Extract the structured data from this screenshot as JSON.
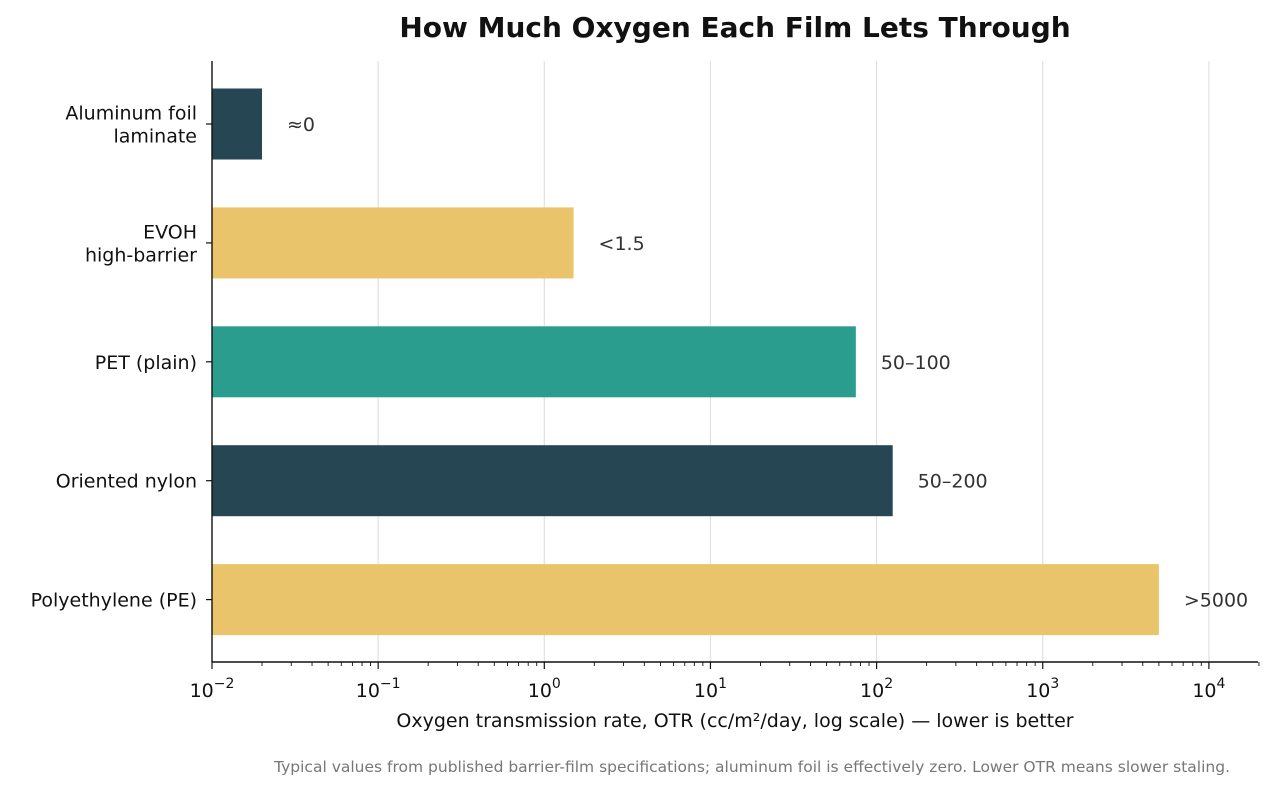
{
  "chart_data": {
    "type": "bar",
    "orientation": "horizontal",
    "title": "How Much Oxygen Each Film Lets Through",
    "xlabel": "Oxygen transmission rate, OTR (cc/m²/day, log scale) — lower is better",
    "ylabel": "",
    "x_scale": "log",
    "xlim": [
      0.01,
      20000
    ],
    "grid": "vertical",
    "footnote": "Typical values from published barrier-film specifications; aluminum foil is effectively zero. Lower OTR means slower staling.",
    "x_ticks": [
      {
        "base": "10",
        "exp": "−2",
        "value": 0.01
      },
      {
        "base": "10",
        "exp": "−1",
        "value": 0.1
      },
      {
        "base": "10",
        "exp": "0",
        "value": 1
      },
      {
        "base": "10",
        "exp": "1",
        "value": 10
      },
      {
        "base": "10",
        "exp": "2",
        "value": 100
      },
      {
        "base": "10",
        "exp": "3",
        "value": 1000
      },
      {
        "base": "10",
        "exp": "4",
        "value": 10000
      }
    ],
    "bars": [
      {
        "label": [
          "Aluminum foil",
          "laminate"
        ],
        "value": 0.02,
        "data_label": "≈0",
        "color": "#264653"
      },
      {
        "label": [
          "EVOH",
          "high-barrier"
        ],
        "value": 1.5,
        "data_label": "<1.5",
        "color": "#E9C46A"
      },
      {
        "label": [
          "PET (plain)"
        ],
        "value": 75,
        "data_label": "50–100",
        "color": "#2A9D8F"
      },
      {
        "label": [
          "Oriented nylon"
        ],
        "value": 125,
        "data_label": "50–200",
        "color": "#264653"
      },
      {
        "label": [
          "Polyethylene (PE)"
        ],
        "value": 5000,
        "data_label": ">5000",
        "color": "#E9C46A"
      }
    ]
  }
}
